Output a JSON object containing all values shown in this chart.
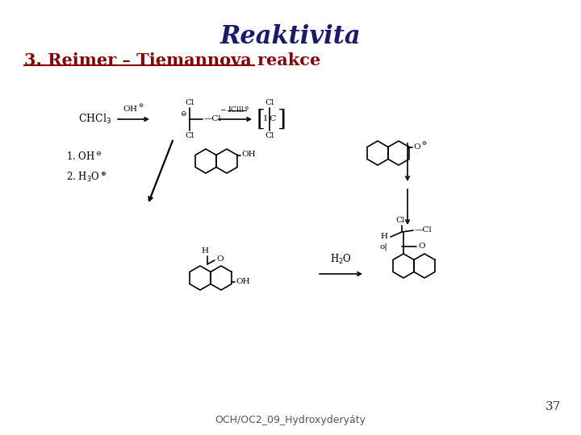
{
  "title": "Reaktivita",
  "subtitle": "3. Reimer – Tiemannova reakce",
  "subtitle_color": "#8B0000",
  "title_color": "#1a1a6e",
  "page_number": "37",
  "footer": "OCH/OC2_09_Hydroxyderyáty",
  "bg_color": "#ffffff",
  "title_fontsize": 22,
  "subtitle_fontsize": 15,
  "footer_fontsize": 9,
  "page_fontsize": 11
}
